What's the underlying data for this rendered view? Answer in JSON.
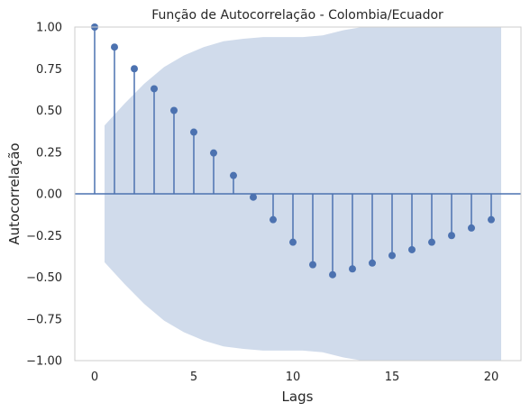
{
  "chart_data": {
    "type": "stem",
    "title": "Função de Autocorrelação - Colombia/Ecuador",
    "xlabel": "Lags",
    "ylabel": "Autocorrelação",
    "xlim": [
      -1,
      21.5
    ],
    "ylim": [
      -1.0,
      1.0
    ],
    "xticks": [
      0,
      5,
      10,
      15,
      20
    ],
    "yticks": [
      -1.0,
      -0.75,
      -0.5,
      -0.25,
      0.0,
      0.25,
      0.5,
      0.75,
      1.0
    ],
    "xtick_labels": [
      "0",
      "5",
      "10",
      "15",
      "20"
    ],
    "ytick_labels": [
      "−1.00",
      "−0.75",
      "−0.50",
      "−0.25",
      "0.00",
      "0.25",
      "0.50",
      "0.75",
      "1.00"
    ],
    "grid": false,
    "colors": {
      "series": "#4c72b0",
      "band": "#d0dbeb",
      "spine": "#cccccc"
    },
    "lags": [
      0,
      1,
      2,
      3,
      4,
      5,
      6,
      7,
      8,
      9,
      10,
      11,
      12,
      13,
      14,
      15,
      16,
      17,
      18,
      19,
      20
    ],
    "values": [
      1.0,
      0.88,
      0.75,
      0.63,
      0.5,
      0.37,
      0.245,
      0.11,
      -0.02,
      -0.155,
      -0.29,
      -0.425,
      -0.485,
      -0.45,
      -0.415,
      -0.37,
      -0.335,
      -0.29,
      -0.25,
      -0.205,
      -0.155
    ],
    "confidence_band": {
      "x": [
        0.5,
        1.5,
        2.5,
        3.5,
        4.5,
        5.5,
        6.5,
        7.5,
        8.5,
        9.5,
        10.5,
        11.5,
        12.5,
        13.5,
        14.5,
        15.5,
        16.5,
        17.5,
        18.5,
        19.5,
        20.5
      ],
      "upper": [
        0.41,
        0.54,
        0.66,
        0.76,
        0.83,
        0.88,
        0.915,
        0.93,
        0.94,
        0.94,
        0.94,
        0.95,
        0.98,
        1.0,
        1.0,
        1.0,
        1.0,
        1.0,
        1.0,
        1.0,
        1.0
      ],
      "lower": [
        -0.41,
        -0.54,
        -0.66,
        -0.76,
        -0.83,
        -0.88,
        -0.915,
        -0.93,
        -0.94,
        -0.94,
        -0.94,
        -0.95,
        -0.98,
        -1.0,
        -1.0,
        -1.0,
        -1.0,
        -1.0,
        -1.0,
        -1.0,
        -1.0
      ]
    }
  }
}
